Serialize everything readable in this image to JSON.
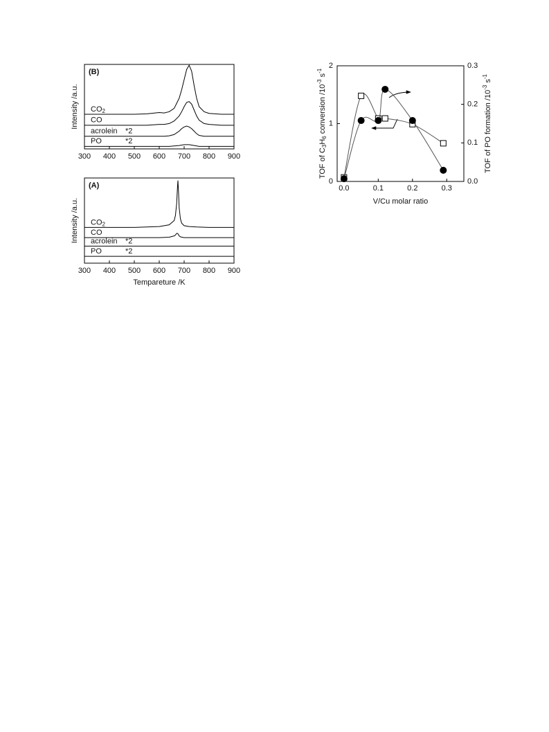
{
  "chart_data": [
    {
      "type": "line",
      "panel": "(B)",
      "ylabel": "Intensity /a.u.",
      "xlim": [
        300,
        900
      ],
      "xticks": [
        300,
        400,
        500,
        600,
        700,
        800,
        900
      ],
      "ylim": [
        0,
        100
      ],
      "x": [
        300,
        400,
        500,
        550,
        600,
        620,
        640,
        660,
        680,
        690,
        700,
        710,
        720,
        730,
        740,
        750,
        760,
        780,
        800,
        850,
        900
      ],
      "series": [
        {
          "name": [
            "CO",
            {
              "sub": "2"
            }
          ],
          "color": "#000000",
          "values": [
            41,
            41,
            41,
            41.5,
            43,
            42.5,
            44,
            48,
            60,
            70,
            82,
            94,
            99,
            92,
            75,
            60,
            50,
            44,
            42,
            41,
            41
          ]
        },
        {
          "name": "CO",
          "color": "#000000",
          "values": [
            28,
            28,
            28,
            28,
            29,
            29,
            30,
            33,
            39,
            44,
            50,
            55,
            56,
            53,
            46,
            39,
            34,
            30,
            29,
            28,
            28
          ]
        },
        {
          "name": "acrolein",
          "scale_label": "*2",
          "color": "#000000",
          "values": [
            15,
            15,
            15,
            15,
            15,
            15,
            15.5,
            17,
            21,
            24,
            26,
            27,
            26,
            24,
            21,
            18,
            16,
            15,
            15,
            15,
            15
          ]
        },
        {
          "name": "PO",
          "scale_label": "*2",
          "color": "#000000",
          "values": [
            3,
            3,
            3,
            3,
            3,
            3,
            3,
            3.5,
            4,
            4.5,
            5,
            5,
            5,
            4.5,
            4,
            3.5,
            3,
            3,
            3,
            3,
            3
          ]
        }
      ]
    },
    {
      "type": "line",
      "panel": "(A)",
      "ylabel": "Intensity /a.u.",
      "xlabel": "Tempareture /K",
      "xlim": [
        300,
        900
      ],
      "xticks": [
        300,
        400,
        500,
        600,
        700,
        800,
        900
      ],
      "ylim": [
        0,
        100
      ],
      "x": [
        300,
        400,
        500,
        550,
        600,
        640,
        660,
        665,
        670,
        673,
        675,
        678,
        680,
        685,
        690,
        700,
        720,
        750,
        800,
        850,
        900
      ],
      "series": [
        {
          "name": [
            "CO",
            {
              "sub": "2"
            }
          ],
          "color": "#000000",
          "values": [
            42,
            42,
            42,
            42.5,
            43,
            45,
            50,
            56,
            70,
            88,
            97,
            80,
            65,
            52,
            47,
            44,
            43,
            42.5,
            42,
            42,
            42
          ]
        },
        {
          "name": "CO",
          "color": "#000000",
          "values": [
            30,
            30,
            30,
            30,
            30,
            30.5,
            32,
            33,
            35,
            35,
            34.5,
            33,
            32,
            31,
            30.5,
            30,
            30,
            30,
            30,
            30,
            30
          ]
        },
        {
          "name": "acrolein",
          "scale_label": "*2",
          "color": "#000000",
          "values": [
            20,
            20,
            20,
            20,
            20,
            20,
            20,
            20,
            20,
            20,
            20,
            20,
            20,
            20,
            20,
            20,
            20,
            20,
            20,
            20,
            20
          ]
        },
        {
          "name": "PO",
          "scale_label": "*2",
          "color": "#000000",
          "values": [
            8,
            8,
            8,
            8,
            8,
            8,
            8,
            8,
            8,
            8,
            8,
            8,
            8,
            8,
            8,
            8,
            8,
            8,
            8,
            8,
            8
          ]
        }
      ]
    },
    {
      "type": "scatter",
      "xlabel": "V/Cu molar ratio",
      "ylabel": [
        "TOF of C",
        {
          "sub": "3"
        },
        "H",
        {
          "sub": "6"
        },
        " conversion /10",
        {
          "sup": "-3"
        },
        " s",
        {
          "sup": "-1"
        }
      ],
      "y2label": [
        "TOF of PO formation /10",
        {
          "sup": "-3"
        },
        " s",
        {
          "sup": "-1"
        }
      ],
      "xlim": [
        -0.02,
        0.35
      ],
      "xticks": [
        {
          "value": 0,
          "label": "0.0"
        },
        0.1,
        0.2,
        0.3
      ],
      "ylim": [
        0,
        2
      ],
      "yticks": [
        0,
        1,
        2
      ],
      "y2lim": [
        0,
        0.3
      ],
      "y2ticks": [
        {
          "value": 0,
          "label": "0.0"
        },
        0.1,
        0.2,
        0.3
      ],
      "x": [
        0,
        0.05,
        0.1,
        0.12,
        0.2,
        0.29
      ],
      "series": [
        {
          "marker": "square",
          "color": "#ffffff",
          "values": [
            0.07,
            1.48,
            1.09,
            1.09,
            0.99,
            0.66
          ]
        },
        {
          "marker": "circle",
          "axis": "y2",
          "color": "#000000",
          "values": [
            0.007,
            0.158,
            0.158,
            0.239,
            0.158,
            0.029
          ]
        }
      ]
    }
  ]
}
